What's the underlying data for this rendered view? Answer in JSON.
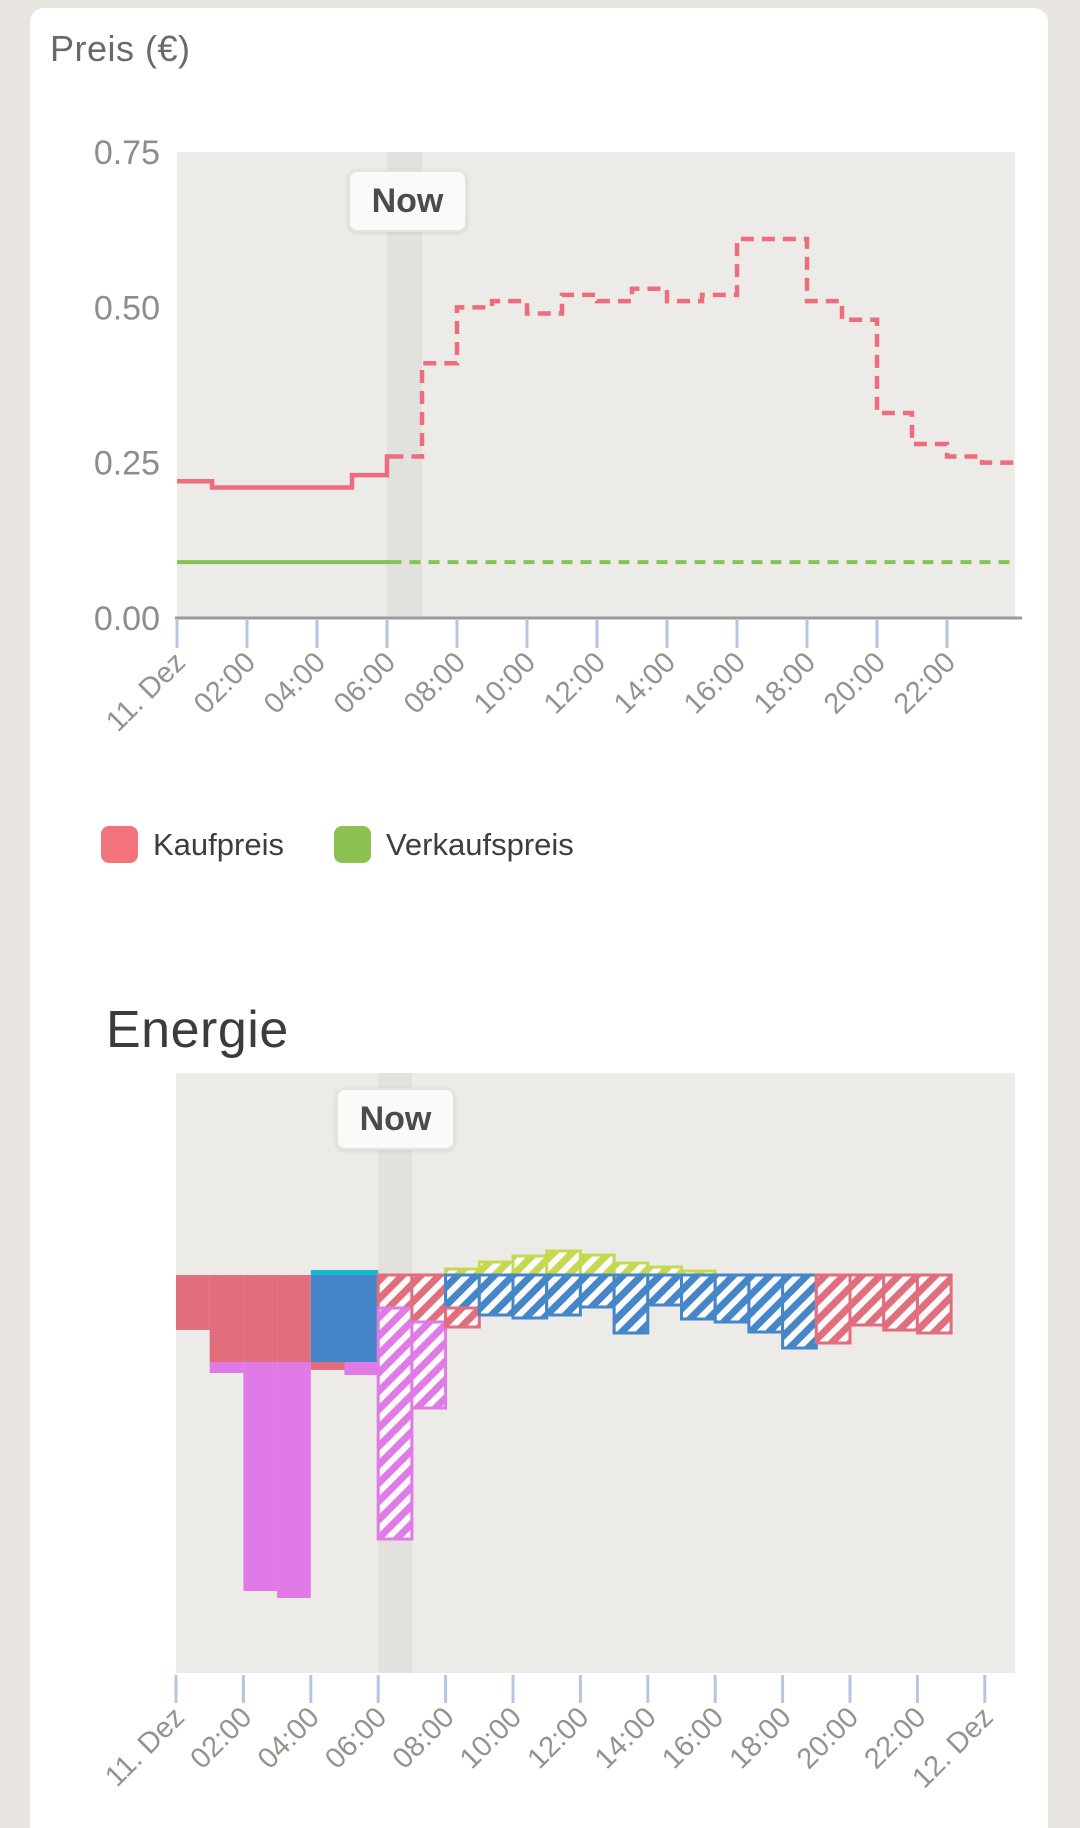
{
  "page": {
    "background": "#e9e6e2",
    "card_background": "#ffffff"
  },
  "style": {
    "plot_background": "#edebe7",
    "now_band": "#e3e1dd",
    "axis_line": "#9a9a97",
    "tick_mark": "#b7c5e3",
    "tick_label_color": "#94938e",
    "y_label_color": "#8e8d89"
  },
  "price_chart": {
    "title": "Preis (€)",
    "now_label": "Now",
    "legend": [
      {
        "label": "Kaufpreis",
        "color": "#f2737c"
      },
      {
        "label": "Verkaufspreis",
        "color": "#8cc152"
      }
    ],
    "chart_data": {
      "type": "line-step",
      "title": "Preis (€)",
      "x_unit": "hour of 11. Dez",
      "x_range": [
        0,
        24
      ],
      "now_hour": 6.1,
      "ylim": [
        0,
        0.75
      ],
      "y_tick_values": [
        0.75,
        0.5,
        0.25,
        0.0
      ],
      "y_tick_labels": [
        "0.75",
        "0.50",
        "0.25",
        "0.00"
      ],
      "x_tick_hours": [
        0,
        2,
        4,
        6,
        8,
        10,
        12,
        14,
        16,
        18,
        20,
        22
      ],
      "x_tick_labels": [
        "11. Dez",
        "02:00",
        "04:00",
        "06:00",
        "08:00",
        "10:00",
        "12:00",
        "14:00",
        "16:00",
        "18:00",
        "20:00",
        "22:00"
      ],
      "grid": false,
      "legend_position": "below",
      "series": [
        {
          "name": "Kaufpreis",
          "color": "#ed6d7d",
          "style": "solid before now, dashed after now",
          "values": [
            0.22,
            0.21,
            0.21,
            0.21,
            0.21,
            0.23,
            0.26,
            0.41,
            0.5,
            0.51,
            0.49,
            0.52,
            0.51,
            0.53,
            0.51,
            0.52,
            0.61,
            0.61,
            0.51,
            0.48,
            0.33,
            0.28,
            0.26,
            0.25
          ]
        },
        {
          "name": "Verkaufspreis",
          "color": "#83c455",
          "style": "solid before now, dashed after now",
          "constant_value": 0.09,
          "values": [
            0.09,
            0.09,
            0.09,
            0.09,
            0.09,
            0.09,
            0.09,
            0.09,
            0.09,
            0.09,
            0.09,
            0.09,
            0.09,
            0.09,
            0.09,
            0.09,
            0.09,
            0.09,
            0.09,
            0.09,
            0.09,
            0.09,
            0.09,
            0.09
          ]
        }
      ]
    }
  },
  "energy_chart": {
    "title": "Energie",
    "now_label": "Now",
    "chart_data": {
      "type": "bar-stacked-signed",
      "title": "Energie",
      "x_unit": "hour of 11. Dez",
      "x_range": [
        0,
        25
      ],
      "now_hour": 6.1,
      "y_axis": "unlabeled; values are signed bar lengths in screen px",
      "value_unit": "px",
      "x_tick_hours": [
        0,
        2,
        4,
        6,
        8,
        10,
        12,
        14,
        16,
        18,
        20,
        22,
        24
      ],
      "x_tick_labels": [
        "11. Dez",
        "02:00",
        "04:00",
        "06:00",
        "08:00",
        "10:00",
        "12:00",
        "14:00",
        "16:00",
        "18:00",
        "20:00",
        "22:00",
        "12. Dez"
      ],
      "series_colors": {
        "red": "#e06e7c",
        "blue": "#4486c8",
        "purple": "#e07ae6",
        "cyan": "#19b8d2",
        "yellow": "#c6d850"
      },
      "hatched_means": "forecast (after now); solid means history",
      "bar_format": [
        "hour",
        "series",
        "value_px",
        "hatched"
      ],
      "bars": [
        [
          0,
          "red",
          -55,
          0
        ],
        [
          1,
          "red",
          -87,
          0
        ],
        [
          1,
          "purple",
          -11,
          0
        ],
        [
          2,
          "red",
          -87,
          0
        ],
        [
          2,
          "purple",
          -229,
          0
        ],
        [
          3,
          "red",
          -87,
          0
        ],
        [
          3,
          "purple",
          -236,
          0
        ],
        [
          4,
          "cyan",
          5,
          0
        ],
        [
          4,
          "blue",
          -87,
          0
        ],
        [
          4,
          "red",
          -8,
          0
        ],
        [
          5,
          "cyan",
          5,
          0
        ],
        [
          5,
          "blue",
          -87,
          0
        ],
        [
          5,
          "purple",
          -13,
          0
        ],
        [
          6,
          "red",
          -33,
          1
        ],
        [
          6,
          "purple",
          -231,
          1
        ],
        [
          7,
          "red",
          -47,
          1
        ],
        [
          7,
          "purple",
          -86,
          1
        ],
        [
          8,
          "yellow",
          6,
          1
        ],
        [
          8,
          "blue",
          -33,
          1
        ],
        [
          8,
          "red",
          -19,
          1
        ],
        [
          9,
          "yellow",
          13,
          1
        ],
        [
          9,
          "blue",
          -40,
          1
        ],
        [
          10,
          "yellow",
          19,
          1
        ],
        [
          10,
          "blue",
          -43,
          1
        ],
        [
          11,
          "yellow",
          24,
          1
        ],
        [
          11,
          "blue",
          -40,
          1
        ],
        [
          12,
          "yellow",
          20,
          1
        ],
        [
          12,
          "blue",
          -32,
          1
        ],
        [
          13,
          "yellow",
          12,
          1
        ],
        [
          13,
          "blue",
          -58,
          1
        ],
        [
          14,
          "yellow",
          8,
          1
        ],
        [
          14,
          "blue",
          -30,
          1
        ],
        [
          15,
          "yellow",
          4,
          1
        ],
        [
          15,
          "blue",
          -44,
          1
        ],
        [
          16,
          "blue",
          -47,
          1
        ],
        [
          17,
          "blue",
          -57,
          1
        ],
        [
          18,
          "blue",
          -73,
          1
        ],
        [
          19,
          "red",
          -68,
          1
        ],
        [
          20,
          "red",
          -50,
          1
        ],
        [
          21,
          "red",
          -55,
          1
        ],
        [
          22,
          "red",
          -58,
          1
        ]
      ]
    }
  }
}
